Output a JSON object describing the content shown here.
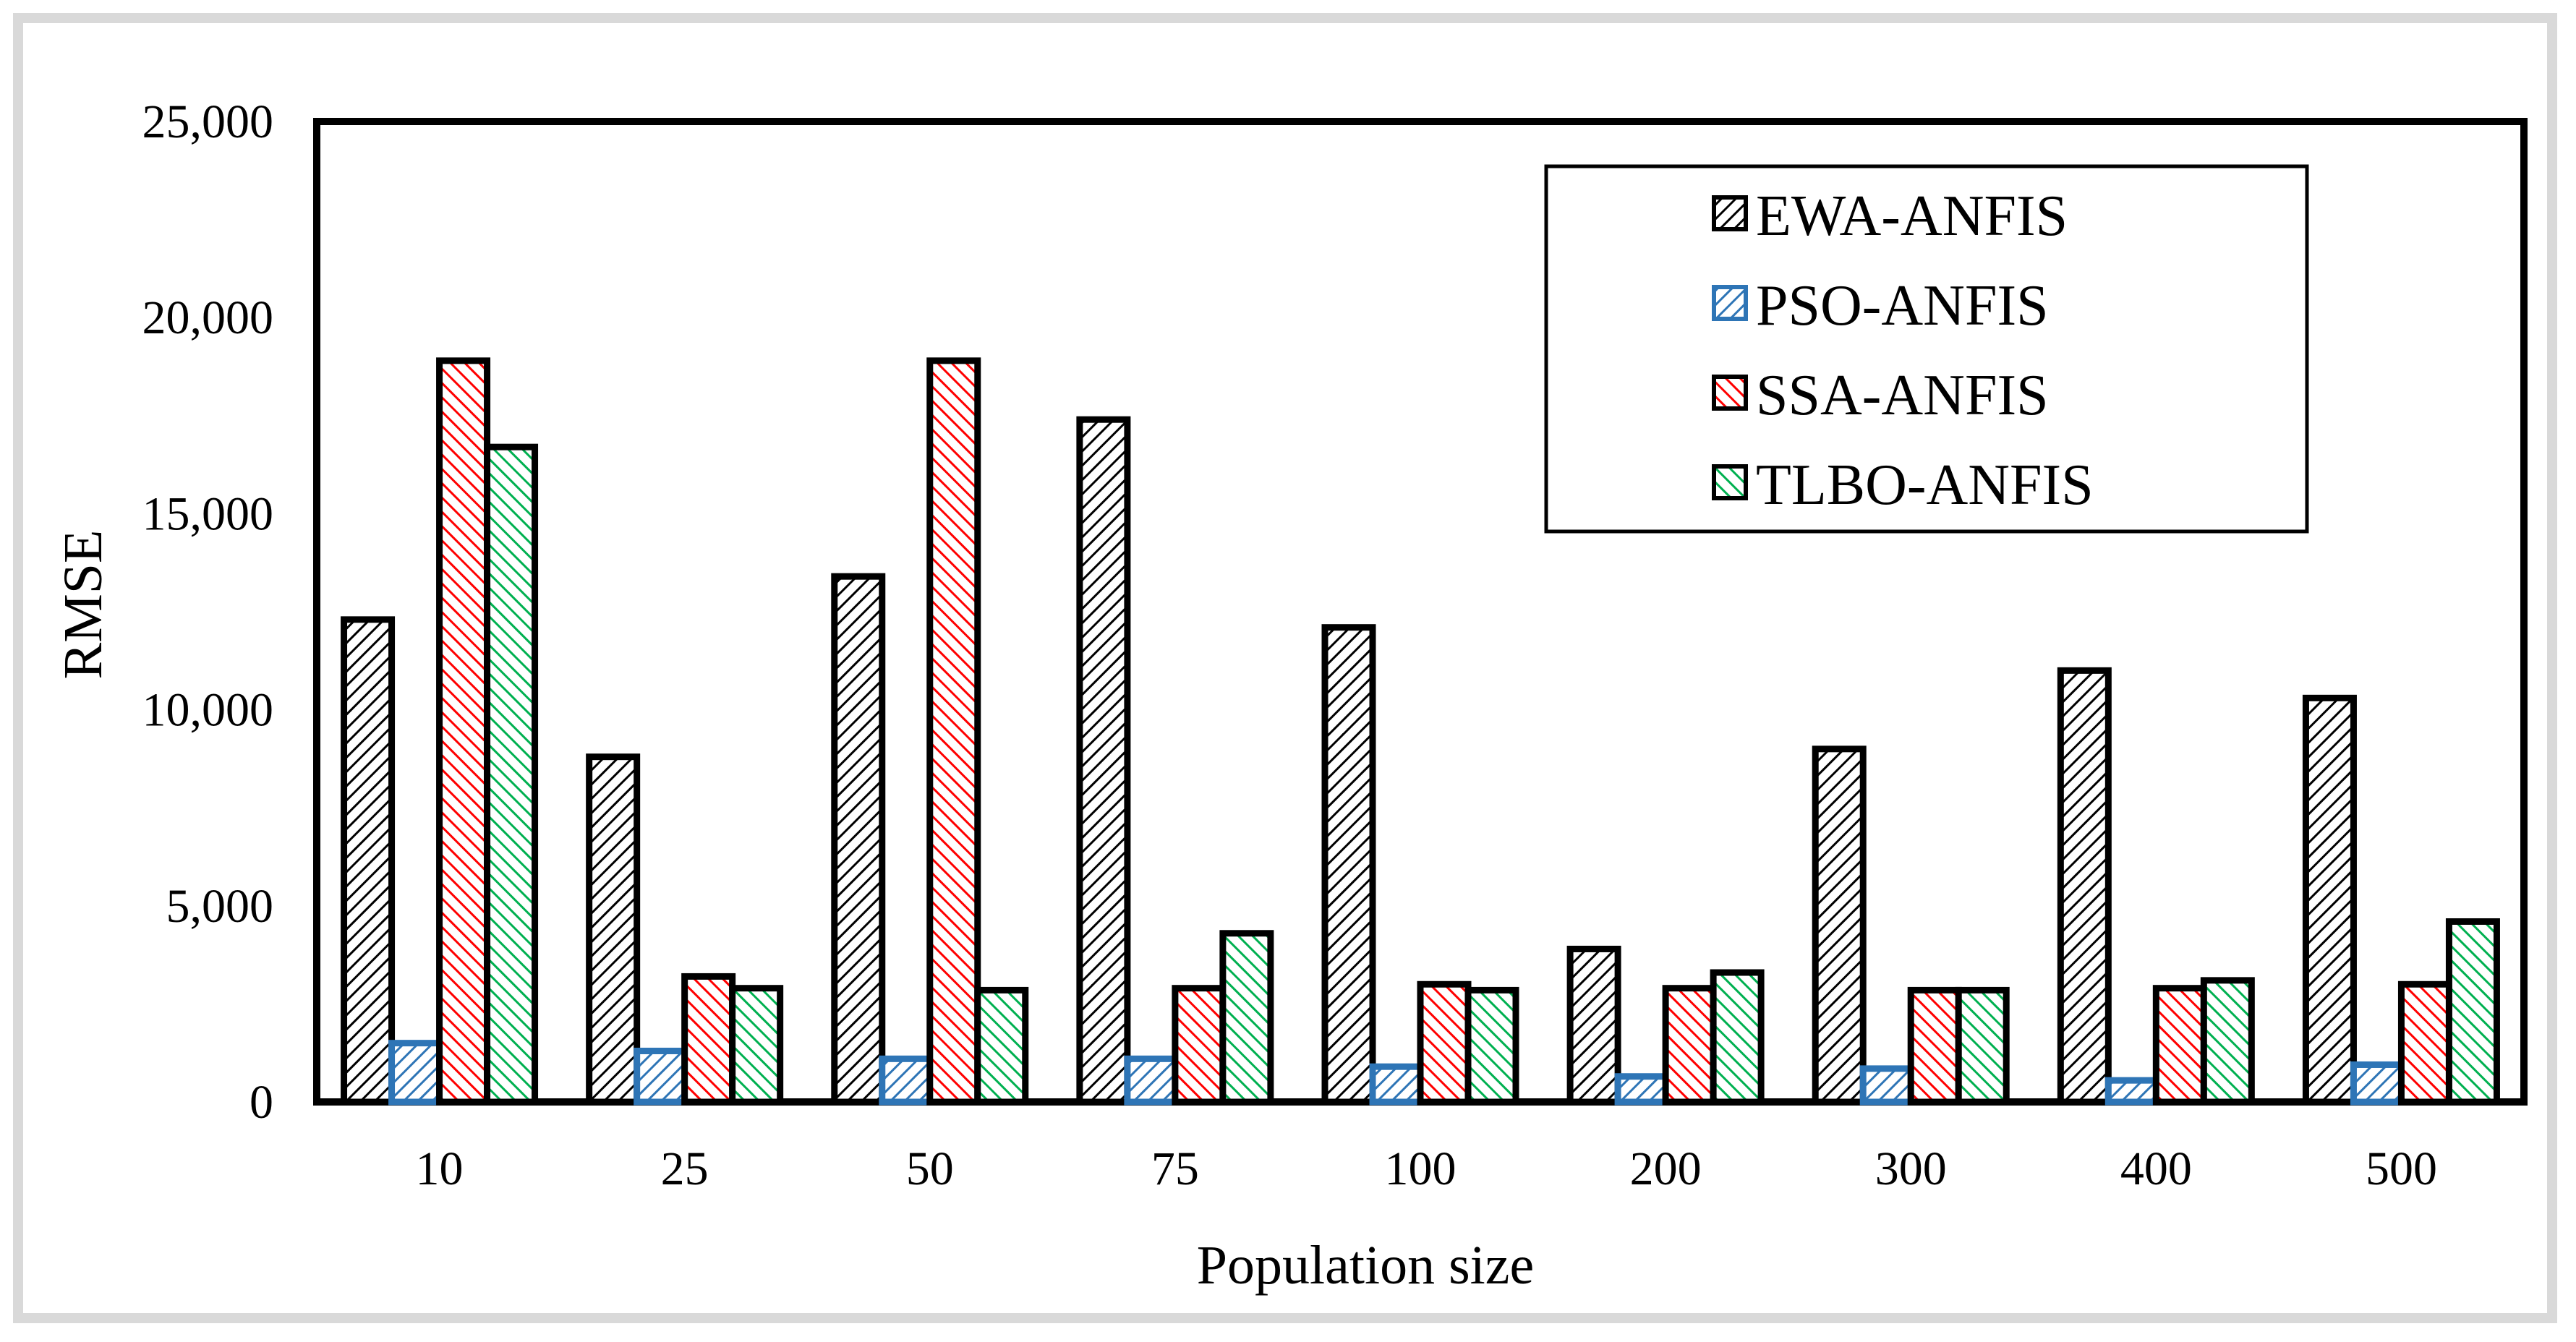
{
  "chart_data": {
    "type": "bar",
    "title": "",
    "xlabel": "Population size",
    "ylabel": "RMSE",
    "ylim": [
      0,
      25000
    ],
    "yticks": [
      0,
      5000,
      10000,
      15000,
      20000,
      25000
    ],
    "ytick_labels": [
      "0",
      "5,000",
      "10,000",
      "15,000",
      "20,000",
      "25,000"
    ],
    "categories": [
      "10",
      "25",
      "50",
      "75",
      "100",
      "200",
      "300",
      "400",
      "500"
    ],
    "series": [
      {
        "name": "EWA-ANFIS",
        "color": "#000000",
        "values": [
          12300,
          8800,
          13400,
          17400,
          12100,
          3900,
          9000,
          11000,
          10300
        ]
      },
      {
        "name": "PSO-ANFIS",
        "color": "#2e75b6",
        "values": [
          1500,
          1300,
          1100,
          1100,
          900,
          650,
          850,
          550,
          950
        ]
      },
      {
        "name": "SSA-ANFIS",
        "color": "#ff0000",
        "values": [
          18900,
          3200,
          18900,
          2900,
          3000,
          2900,
          2850,
          2900,
          3000
        ]
      },
      {
        "name": "TLBO-ANFIS",
        "color": "#00b050",
        "values": [
          16700,
          2900,
          2850,
          4300,
          2850,
          3300,
          2850,
          3100,
          4600
        ]
      }
    ],
    "legend_position": "top-right",
    "grid": false
  }
}
